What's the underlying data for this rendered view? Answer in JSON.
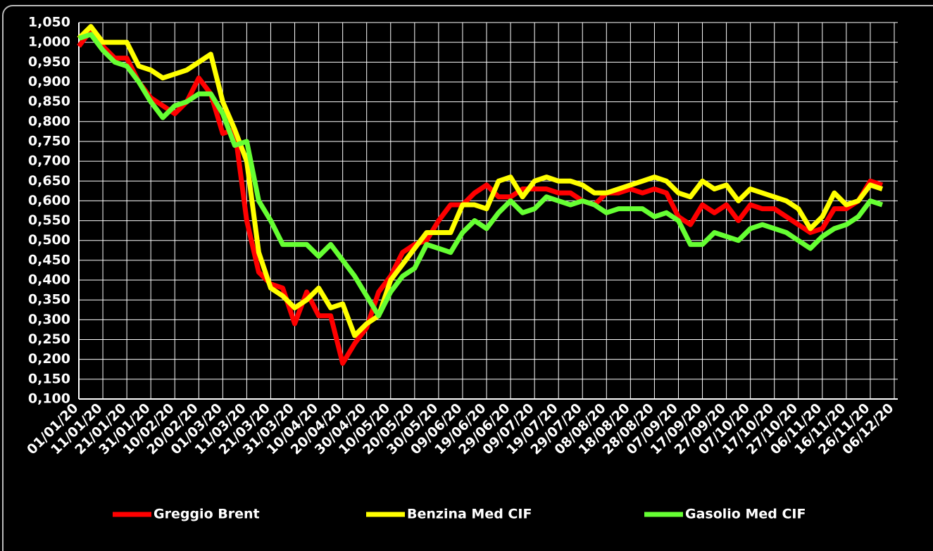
{
  "chart_data": {
    "type": "line",
    "categories": [
      "01/01/20",
      null,
      "11/01/20",
      null,
      "21/01/20",
      null,
      "31/01/20",
      null,
      "10/02/20",
      null,
      "20/02/20",
      null,
      "01/03/20",
      null,
      "11/03/20",
      null,
      "21/03/20",
      null,
      "31/03/20",
      null,
      "10/04/20",
      null,
      "20/04/20",
      null,
      "30/04/20",
      null,
      "10/05/20",
      null,
      "20/05/20",
      null,
      "30/05/20",
      null,
      "09/06/20",
      null,
      "19/06/20",
      null,
      "29/06/20",
      null,
      "09/07/20",
      null,
      "19/07/20",
      null,
      "29/07/20",
      null,
      "08/08/20",
      null,
      "18/08/20",
      null,
      "28/08/20",
      null,
      "07/09/20",
      null,
      "17/09/20",
      null,
      "27/09/20",
      null,
      "07/10/20",
      null,
      "17/10/20",
      null,
      "27/10/20",
      null,
      "06/11/20",
      null,
      "16/11/20",
      null,
      "26/11/20",
      null,
      "06/12/20"
    ],
    "series": [
      {
        "name": "Greggio Brent",
        "color": "#ff0000",
        "values": [
          0.99,
          1.03,
          0.99,
          0.96,
          0.96,
          0.9,
          0.86,
          0.84,
          0.82,
          0.85,
          0.91,
          0.87,
          0.77,
          0.78,
          0.55,
          0.42,
          0.39,
          0.38,
          0.29,
          0.37,
          0.31,
          0.31,
          0.19,
          0.24,
          0.28,
          0.37,
          0.41,
          0.47,
          0.49,
          0.5,
          0.55,
          0.59,
          0.59,
          0.62,
          0.64,
          0.61,
          0.61,
          0.63,
          0.63,
          0.63,
          0.62,
          0.62,
          0.6,
          0.59,
          0.62,
          0.62,
          0.63,
          0.62,
          0.63,
          0.62,
          0.56,
          0.54,
          0.59,
          0.57,
          0.59,
          0.55,
          0.59,
          0.58,
          0.58,
          0.56,
          0.54,
          0.52,
          0.53,
          0.58,
          0.58,
          0.6,
          0.65,
          0.64,
          null
        ]
      },
      {
        "name": "Benzina Med CIF",
        "color": "#ffff00",
        "values": [
          1.01,
          1.04,
          1.0,
          1.0,
          1.0,
          0.94,
          0.93,
          0.91,
          0.92,
          0.93,
          0.95,
          0.97,
          0.85,
          0.78,
          0.7,
          0.47,
          0.38,
          0.36,
          0.33,
          0.35,
          0.38,
          0.33,
          0.34,
          0.26,
          0.29,
          0.31,
          0.4,
          0.44,
          0.48,
          0.52,
          0.52,
          0.52,
          0.59,
          0.59,
          0.58,
          0.65,
          0.66,
          0.61,
          0.65,
          0.66,
          0.65,
          0.65,
          0.64,
          0.62,
          0.62,
          0.63,
          0.64,
          0.65,
          0.66,
          0.65,
          0.62,
          0.61,
          0.65,
          0.63,
          0.64,
          0.6,
          0.63,
          0.62,
          0.61,
          0.6,
          0.58,
          0.53,
          0.56,
          0.62,
          0.59,
          0.6,
          0.64,
          0.63,
          null
        ]
      },
      {
        "name": "Gasolio Med CIF",
        "color": "#66ff33",
        "values": [
          1.01,
          1.02,
          0.98,
          0.95,
          0.94,
          0.9,
          0.85,
          0.81,
          0.84,
          0.85,
          0.87,
          0.87,
          0.82,
          0.74,
          0.75,
          0.6,
          0.55,
          0.49,
          0.49,
          0.49,
          0.46,
          0.49,
          0.45,
          0.41,
          0.36,
          0.31,
          0.37,
          0.41,
          0.43,
          0.49,
          0.48,
          0.47,
          0.52,
          0.55,
          0.53,
          0.57,
          0.6,
          0.57,
          0.58,
          0.61,
          0.6,
          0.59,
          0.6,
          0.59,
          0.57,
          0.58,
          0.58,
          0.58,
          0.56,
          0.57,
          0.55,
          0.49,
          0.49,
          0.52,
          0.51,
          0.5,
          0.53,
          0.54,
          0.53,
          0.52,
          0.5,
          0.48,
          0.51,
          0.53,
          0.54,
          0.56,
          0.6,
          0.59,
          null
        ]
      }
    ],
    "ylim": [
      0.1,
      1.05
    ],
    "yticks": [
      {
        "value": 0.1,
        "label": "0,100"
      },
      {
        "value": 0.15,
        "label": "0,150"
      },
      {
        "value": 0.2,
        "label": "0,200"
      },
      {
        "value": 0.25,
        "label": "0,250"
      },
      {
        "value": 0.3,
        "label": "0,300"
      },
      {
        "value": 0.35,
        "label": "0,350"
      },
      {
        "value": 0.4,
        "label": "0,400"
      },
      {
        "value": 0.45,
        "label": "0,450"
      },
      {
        "value": 0.5,
        "label": "0,500"
      },
      {
        "value": 0.55,
        "label": "0,550"
      },
      {
        "value": 0.6,
        "label": "0,600"
      },
      {
        "value": 0.65,
        "label": "0,650"
      },
      {
        "value": 0.7,
        "label": "0,700"
      },
      {
        "value": 0.75,
        "label": "0,750"
      },
      {
        "value": 0.8,
        "label": "0,800"
      },
      {
        "value": 0.85,
        "label": "0,850"
      },
      {
        "value": 0.9,
        "label": "0,900"
      },
      {
        "value": 0.95,
        "label": "0,950"
      },
      {
        "value": 1.0,
        "label": "1,000"
      },
      {
        "value": 1.05,
        "label": "1,050"
      }
    ],
    "grid": true,
    "legend": "bottom"
  }
}
